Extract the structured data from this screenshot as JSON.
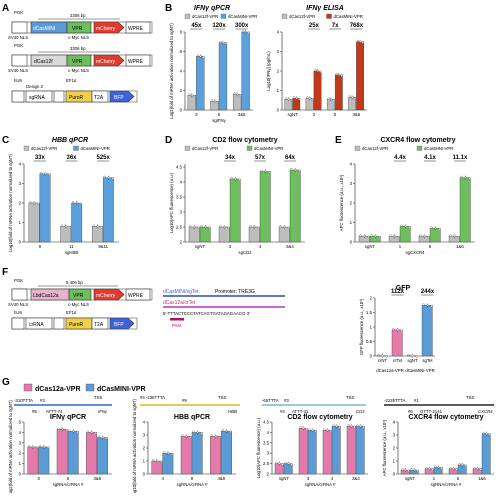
{
  "figure": {
    "colors": {
      "dcas12f": "#bdbdbd",
      "dcasmini": "#5aa0dc",
      "elisa_mini": "#c0391b",
      "cd2_mini": "#6cbf5c",
      "cas12a": "#e37aa9",
      "mini_g": "#5b9bd5"
    },
    "panel_labels": [
      "A",
      "B",
      "C",
      "D",
      "E",
      "F",
      "G"
    ],
    "A": {
      "construct1": {
        "promoter": "PGK",
        "size": "3306 bp",
        "boxes": [
          "dCasMINI",
          "VPR",
          "mCherry",
          "WPRE"
        ],
        "nls": [
          "SV40 NLS",
          "c-Myc NLS"
        ]
      },
      "construct2": {
        "promoter": "PGK",
        "size": "3306 bp",
        "boxes": [
          "dCas12f",
          "VPR",
          "mCherry",
          "WPRE"
        ],
        "nls": [
          "SV40 NLS",
          "c-Myc NLS"
        ]
      },
      "construct3": {
        "promoters": [
          "hU6",
          "EF1α"
        ],
        "design": "Design 2",
        "boxes": [
          "sgRNA",
          "PuroR",
          "T2A",
          "BFP"
        ]
      }
    },
    "F": {
      "construct1": {
        "promoter": "PGK",
        "size": "5,406 bp",
        "boxes": [
          "LbdCas12a",
          "VPR",
          "mCherry",
          "WPRE"
        ],
        "nls": [
          "SV40 NLS",
          "c-Myc NLS"
        ]
      },
      "construct2": {
        "promoters": [
          "hU6",
          "EF1α"
        ],
        "boxes": [
          "crRNA",
          "PuroR",
          "T2A",
          "BFP"
        ]
      },
      "scheme": {
        "label1": "dCasMINI/sgTet",
        "label2": "dCas12a/crTet",
        "promoter": "Promoter: TRE3G",
        "sequence": "5'-TTTACTCCCTATCAGTGATAGAGAACG-3'",
        "pam": "PAM"
      },
      "gfp": {
        "title": "GFP",
        "ylabel": "GFP fluorescence (a.u., x10³)",
        "fold_small": "112x",
        "fold_big": "244x",
        "xlabels": [
          "crNT",
          "crTet",
          "sgNT",
          "sgTet"
        ],
        "groups": [
          "dCas12a-VPR",
          "dCasMINI-VPR"
        ]
      }
    },
    "G": {
      "legend": [
        "dCas12a-VPR",
        "dCasMINI-VPR"
      ],
      "schemes": [
        {
          "left": "-310TTTA",
          "site1": "#3",
          "site2": "#5",
          "right": "ATTT-74",
          "tss": "TSS",
          "gene": "IFNγ"
        },
        {
          "left": "#4 -238TTTA",
          "site1": "#9",
          "right": "",
          "tss": "TSS",
          "gene": "HBB"
        },
        {
          "left": "-65TTTA",
          "site1": "#3",
          "site2": "#4",
          "right": "ATTT-41",
          "tss": "TSS",
          "gene": "CD2"
        },
        {
          "left": "-2226TTTA",
          "site1": "#1",
          "site2": "#6",
          "right": "GTTT-2141",
          "tss": "TSS",
          "gene": "CXCR4"
        }
      ],
      "xlabel": "sgRNA/crRNA #"
    }
  },
  "chart_data": [
    {
      "id": "B1",
      "type": "bar",
      "title": "IFNγ qPCR",
      "ylabel": "Log2(fold of mRNA activation normalized to sgNT)",
      "xlabel": "sgIFNγ",
      "categories": [
        "3",
        "5",
        "3&5"
      ],
      "ylim": [
        0,
        8
      ],
      "yticks": [
        0,
        2,
        4,
        6,
        8
      ],
      "legend": [
        "dCas12f-VPR",
        "dCasMINI-VPR"
      ],
      "series": [
        {
          "name": "dCas12f-VPR",
          "values": [
            1.5,
            0.9,
            1.6
          ]
        },
        {
          "name": "dCasMINI-VPR",
          "values": [
            5.5,
            6.9,
            8.2
          ]
        }
      ],
      "annotations": [
        "45x",
        "120x",
        "300x"
      ]
    },
    {
      "id": "B2",
      "type": "bar",
      "title": "IFNγ ELISA",
      "ylabel": "Log10[IFNγ] (pg/mL)",
      "categories": [
        "sgNT",
        "3",
        "5",
        "3&5"
      ],
      "ylim": [
        0,
        4
      ],
      "yticks": [
        0,
        1,
        2,
        3,
        4
      ],
      "legend": [
        "dCas12f-VPR",
        "dCasMINI-VPR"
      ],
      "series": [
        {
          "name": "dCas12f-VPR",
          "values": [
            0.55,
            0.6,
            0.55,
            0.65
          ]
        },
        {
          "name": "dCasMINI-VPR",
          "values": [
            0.6,
            2.0,
            1.8,
            3.5
          ]
        }
      ],
      "annotations": [
        "25x",
        "7x",
        "768x"
      ]
    },
    {
      "id": "C",
      "type": "bar",
      "title": "HBB qPCR",
      "ylabel": "Log10(fold of mRNA activation normalized to sgNT)",
      "xlabel": "sgHBB",
      "categories": [
        "9",
        "11",
        "9&11"
      ],
      "ylim": [
        0,
        4
      ],
      "yticks": [
        0,
        1,
        2,
        3,
        4
      ],
      "legend": [
        "dCas12f-VPR",
        "dCasMINI-VPR"
      ],
      "series": [
        {
          "name": "dCas12f-VPR",
          "values": [
            2.0,
            0.8,
            0.8
          ]
        },
        {
          "name": "dCasMINI-VPR",
          "values": [
            3.5,
            2.0,
            3.3
          ]
        }
      ],
      "annotations": [
        "33x",
        "36x",
        "525x"
      ]
    },
    {
      "id": "D",
      "type": "bar",
      "title": "CD2 flow cytometry",
      "ylabel": "Log10(APC fluorescence) (a.u.)",
      "xlabel": "sgCD2",
      "categories": [
        "sgNT",
        "3",
        "4",
        "3&4"
      ],
      "ylim": [
        2,
        4.6
      ],
      "yticks": [
        2.0,
        2.5,
        3.0,
        3.5,
        4.0,
        4.5
      ],
      "legend": [
        "dCas12f-VPR",
        "dCasMINI-VPR"
      ],
      "series": [
        {
          "name": "dCas12f-VPR",
          "values": [
            2.5,
            2.5,
            2.5,
            2.5
          ]
        },
        {
          "name": "dCasMINI-VPR",
          "values": [
            2.5,
            4.1,
            4.35,
            4.4
          ]
        }
      ],
      "annotations": [
        "34x",
        "57x",
        "64x"
      ]
    },
    {
      "id": "E",
      "type": "bar",
      "title": "CXCR4 flow cytometry",
      "ylabel": "APC fluorescence (a.u., x10³)",
      "xlabel": "sgCXCR4",
      "categories": [
        "sgNT",
        "1",
        "6",
        "1&6"
      ],
      "ylim": [
        0,
        4
      ],
      "yticks": [
        0,
        1,
        2,
        3,
        4
      ],
      "legend": [
        "dCas12f-VPR",
        "dCasMINI-VPR"
      ],
      "series": [
        {
          "name": "dCas12f-VPR",
          "values": [
            0.3,
            0.3,
            0.3,
            0.3
          ]
        },
        {
          "name": "dCasMINI-VPR",
          "values": [
            0.3,
            0.8,
            0.7,
            3.3
          ]
        }
      ],
      "annotations": [
        "4.4x",
        "4.1x",
        "11.1x"
      ]
    },
    {
      "id": "F",
      "type": "bar",
      "title": "GFP",
      "ylabel": "GFP fluorescence (a.u., x10³)",
      "categories": [
        "crNT",
        "crTet",
        "sgNT",
        "sgTet"
      ],
      "ylim": [
        0,
        2
      ],
      "yticks": [
        0,
        0.5,
        1.0,
        1.5,
        2.0
      ],
      "values": [
        0.01,
        0.9,
        0.01,
        1.75
      ],
      "annotations": [
        "112x",
        "244x"
      ]
    },
    {
      "id": "G1",
      "type": "bar",
      "title": "IFNγ qPCR",
      "ylabel": "Log2(fold of mRNA activation normalized to sgNT)",
      "xlabel": "sgRNA/crRNA #",
      "categories": [
        "3",
        "5",
        "3&5"
      ],
      "ylim": [
        0,
        5
      ],
      "yticks": [
        0,
        1,
        2,
        3,
        4,
        5
      ],
      "series": [
        {
          "name": "dCas12a-VPR",
          "values": [
            2.6,
            4.3,
            4.0
          ]
        },
        {
          "name": "dCasMINI-VPR",
          "values": [
            2.6,
            4.1,
            3.5
          ]
        }
      ]
    },
    {
      "id": "G2",
      "type": "bar",
      "title": "HBB qPCR",
      "ylabel": "Log10(fold of mRNA activation normalized to sgNT)",
      "xlabel": "sgRNA/crRNA #",
      "categories": [
        "4",
        "9",
        "4&9"
      ],
      "ylim": [
        0,
        4
      ],
      "yticks": [
        0,
        1,
        2,
        3,
        4
      ],
      "series": [
        {
          "name": "dCas12a-VPR",
          "values": [
            1.0,
            2.9,
            2.9
          ]
        },
        {
          "name": "dCasMINI-VPR",
          "values": [
            1.6,
            3.2,
            3.3
          ]
        }
      ]
    },
    {
      "id": "G3",
      "type": "bar",
      "title": "CD2 flow cytometry",
      "ylabel": "Log10(APC fluorescence) (a.u.)",
      "xlabel": "sgRNA/crRNA #",
      "categories": [
        "sgNT",
        "3",
        "4",
        "3&4"
      ],
      "ylim": [
        2.0,
        4.5
      ],
      "yticks": [
        2.0,
        2.5,
        3.0,
        3.5,
        4.0,
        4.5
      ],
      "series": [
        {
          "name": "dCas12a-VPR",
          "values": [
            2.5,
            4.2,
            4.1,
            4.3
          ]
        },
        {
          "name": "dCasMINI-VPR",
          "values": [
            2.5,
            4.1,
            4.3,
            4.3
          ]
        }
      ]
    },
    {
      "id": "G4",
      "type": "bar",
      "title": "CXCR4 flow cytometry",
      "ylabel": "APC fluorescence (a.u., x10³)",
      "xlabel": "sgRNA/crRNA #",
      "categories": [
        "sgNT",
        "1",
        "6",
        "1&6"
      ],
      "ylim": [
        0,
        4
      ],
      "yticks": [
        0,
        1,
        2,
        3,
        4
      ],
      "series": [
        {
          "name": "dCas12a-VPR",
          "values": [
            0.3,
            0.4,
            0.4,
            0.4
          ]
        },
        {
          "name": "dCasMINI-VPR",
          "values": [
            0.3,
            0.5,
            0.7,
            3.1
          ]
        }
      ]
    }
  ]
}
